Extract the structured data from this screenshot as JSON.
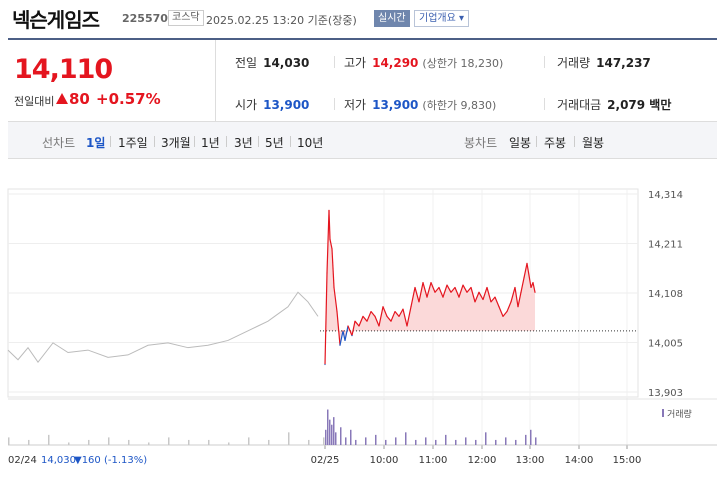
{
  "header": {
    "name": "넥슨게임즈",
    "code": "225570",
    "market": "코스닥",
    "datetime": "2025.02.25 13:20 기준(장중)",
    "realtime_label": "실시간",
    "corp_label": "기업개요 ▾"
  },
  "quote": {
    "price": "14,110",
    "change_label": "전일대비",
    "change_value": "80",
    "change_pct": "+0.57%",
    "prev_close_label": "전일",
    "prev_close": "14,030",
    "high_label": "고가",
    "high": "14,290",
    "upper_limit_label": "(상한가 18,230)",
    "volume_label": "거래량",
    "volume": "147,237",
    "open_label": "시가",
    "open": "13,900",
    "low_label": "저가",
    "low": "13,900",
    "lower_limit_label": "(하한가 9,830)",
    "amount_label": "거래대금",
    "amount": "2,079 백만"
  },
  "tabs": {
    "line_label": "선차트",
    "line_tabs": [
      "1일",
      "1주일",
      "3개월",
      "1년",
      "3년",
      "5년",
      "10년"
    ],
    "candle_label": "봉차트",
    "candle_tabs": [
      "일봉",
      "주봉",
      "월봉"
    ]
  },
  "colors": {
    "up": "#e4151f",
    "down": "#1d56c6",
    "prev_day": "#bbbbbb",
    "volume_today": "#8878b8",
    "fill": "#fbd9d9"
  },
  "chart_data": {
    "type": "line",
    "ylim": [
      13903,
      14314
    ],
    "y_ticks": [
      "14,314",
      "14,211",
      "14,108",
      "14,005",
      "13,903"
    ],
    "x_ticks": [
      "02/25",
      "10:00",
      "11:00",
      "12:00",
      "13:00",
      "14:00",
      "15:00"
    ],
    "volume_legend": "거래량",
    "prev_day_caption": "02/24",
    "prev_day_close": "14,030",
    "prev_day_change": "▼160 (-1.13%)",
    "reference_price": 14030,
    "series": [
      {
        "x": [
          0,
          10,
          20,
          30,
          45,
          60,
          80,
          100,
          120,
          140,
          160,
          180,
          200,
          220,
          240,
          250,
          260,
          270,
          280,
          290,
          300,
          310
        ],
        "values": [
          13990,
          13970,
          13995,
          13965,
          14005,
          13985,
          13990,
          13975,
          13980,
          14000,
          14005,
          13995,
          14000,
          14010,
          14030,
          14040,
          14050,
          14065,
          14080,
          14110,
          14090,
          14060
        ]
      },
      {
        "x": [
          0,
          2,
          4,
          5,
          7,
          9,
          12,
          15,
          18,
          20,
          23,
          27,
          30,
          34,
          38,
          42,
          46,
          50,
          54,
          58,
          62,
          66,
          70,
          74,
          78,
          82,
          86,
          90,
          94,
          98,
          102,
          106,
          110,
          114,
          118,
          122,
          126,
          130,
          134,
          138,
          142,
          146,
          150,
          154,
          158,
          162,
          166,
          170,
          174,
          178,
          182,
          186,
          190,
          193,
          196,
          199,
          202,
          206,
          208,
          210
        ],
        "values": [
          13960,
          14150,
          14280,
          14220,
          14200,
          14120,
          14070,
          14000,
          14030,
          14010,
          14040,
          14020,
          14050,
          14040,
          14060,
          14050,
          14070,
          14060,
          14040,
          14080,
          14060,
          14050,
          14070,
          14060,
          14075,
          14040,
          14080,
          14120,
          14090,
          14130,
          14100,
          14130,
          14110,
          14120,
          14100,
          14125,
          14110,
          14120,
          14100,
          14125,
          14110,
          14120,
          14090,
          14110,
          14095,
          14120,
          14090,
          14100,
          14080,
          14060,
          14070,
          14090,
          14120,
          14080,
          14110,
          14140,
          14170,
          14120,
          14130,
          14110
        ]
      }
    ],
    "volume": [
      {
        "x": [
          0,
          20,
          40,
          60,
          80,
          100,
          120,
          140,
          160,
          180,
          200,
          220,
          240,
          260,
          280,
          300,
          315
        ],
        "values": [
          3,
          2,
          4,
          1,
          2,
          3,
          2,
          1,
          3,
          2,
          2,
          1,
          3,
          2,
          5,
          2,
          3
        ]
      },
      {
        "x": [
          0,
          2,
          4,
          6,
          8,
          10,
          15,
          20,
          25,
          30,
          40,
          50,
          60,
          70,
          80,
          90,
          100,
          110,
          120,
          130,
          140,
          150,
          160,
          170,
          180,
          190,
          200,
          205,
          210
        ],
        "values": [
          6,
          14,
          10,
          8,
          11,
          5,
          7,
          3,
          6,
          2,
          3,
          4,
          2,
          3,
          5,
          2,
          3,
          2,
          4,
          2,
          3,
          2,
          5,
          2,
          3,
          2,
          4,
          6,
          3
        ]
      }
    ]
  }
}
